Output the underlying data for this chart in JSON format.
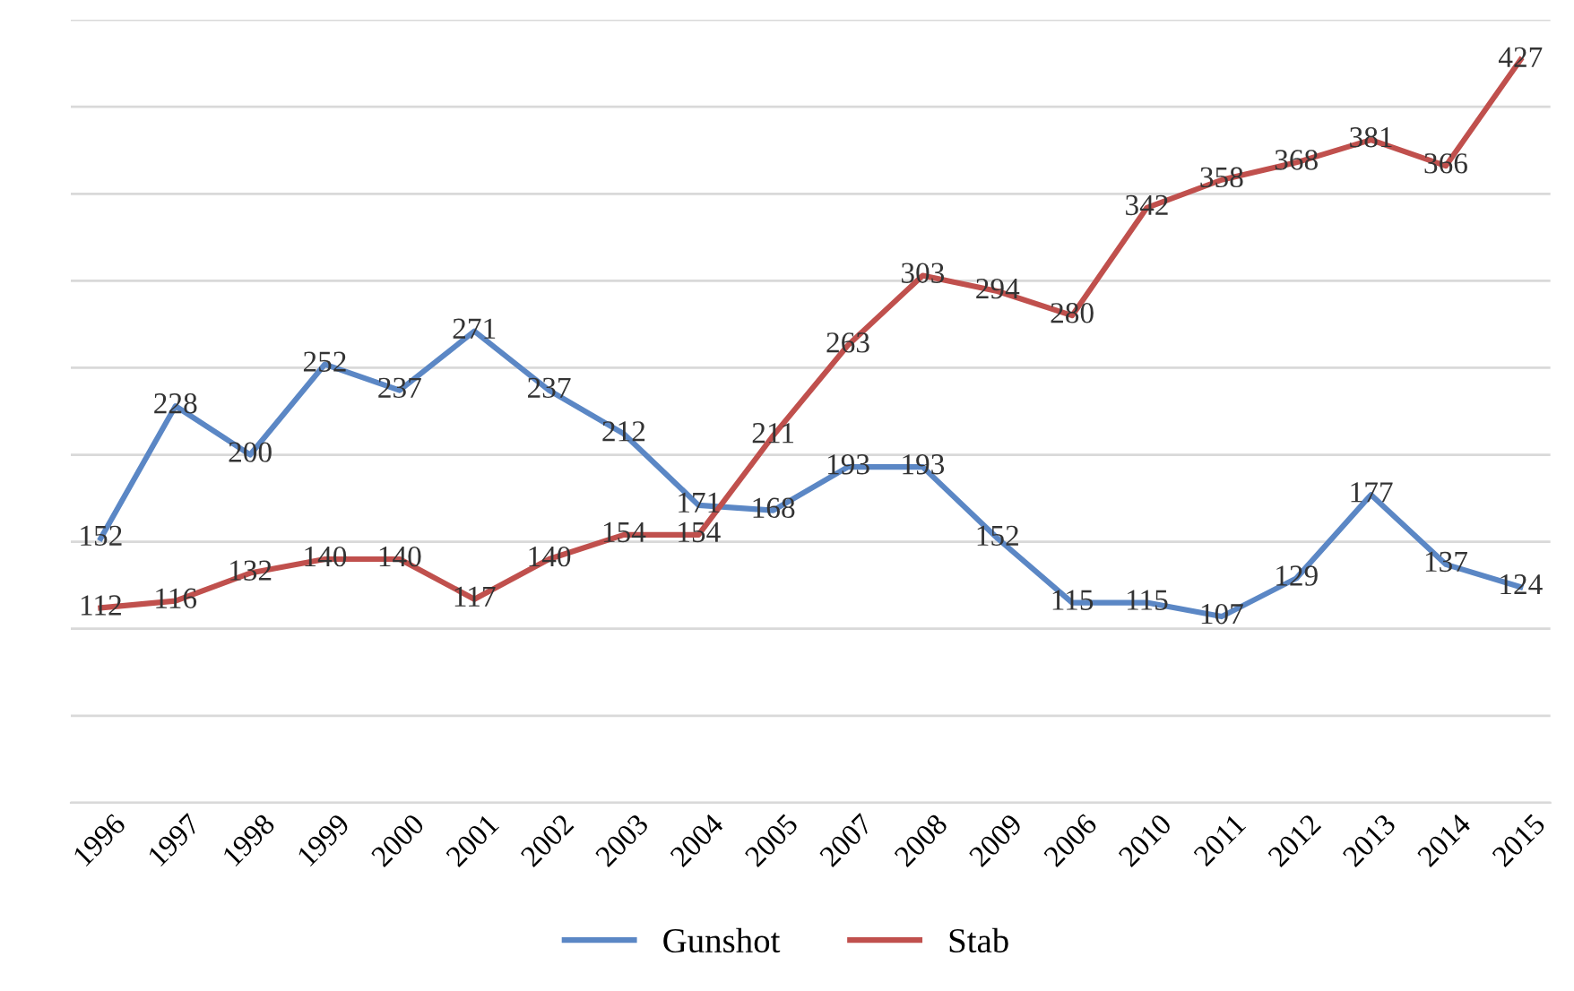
{
  "chart_data": {
    "type": "line",
    "categories": [
      "1996",
      "1997",
      "1998",
      "1999",
      "2000",
      "2001",
      "2002",
      "2003",
      "2004",
      "2005",
      "2007",
      "2008",
      "2009",
      "2006",
      "2010",
      "2011",
      "2012",
      "2013",
      "2014",
      "2015"
    ],
    "series": [
      {
        "name": "Gunshot",
        "color": "#5b87c5",
        "values": [
          152,
          228,
          200,
          252,
          237,
          271,
          237,
          212,
          171,
          168,
          193,
          193,
          152,
          115,
          115,
          107,
          129,
          177,
          137,
          124
        ]
      },
      {
        "name": "Stab",
        "color": "#c0504d",
        "values": [
          112,
          116,
          132,
          140,
          140,
          117,
          140,
          154,
          154,
          211,
          263,
          303,
          294,
          280,
          342,
          358,
          368,
          381,
          366,
          427
        ]
      }
    ],
    "ylim": [
      0,
      450
    ],
    "yticks": [
      {
        "value": 0,
        "label": null
      },
      {
        "value": 50,
        "label": null
      },
      {
        "value": 100,
        "label": null
      },
      {
        "value": 150,
        "label": null
      },
      {
        "value": 200,
        "label": null
      },
      {
        "value": 250,
        "label": null
      },
      {
        "value": 300,
        "label": null
      },
      {
        "value": 350,
        "label": null
      },
      {
        "value": 400,
        "label": null
      },
      {
        "value": 450,
        "label": null
      }
    ],
    "grid": "y",
    "legend": "bottom",
    "data_labels": true,
    "marker": "none",
    "line_style": "solid"
  }
}
